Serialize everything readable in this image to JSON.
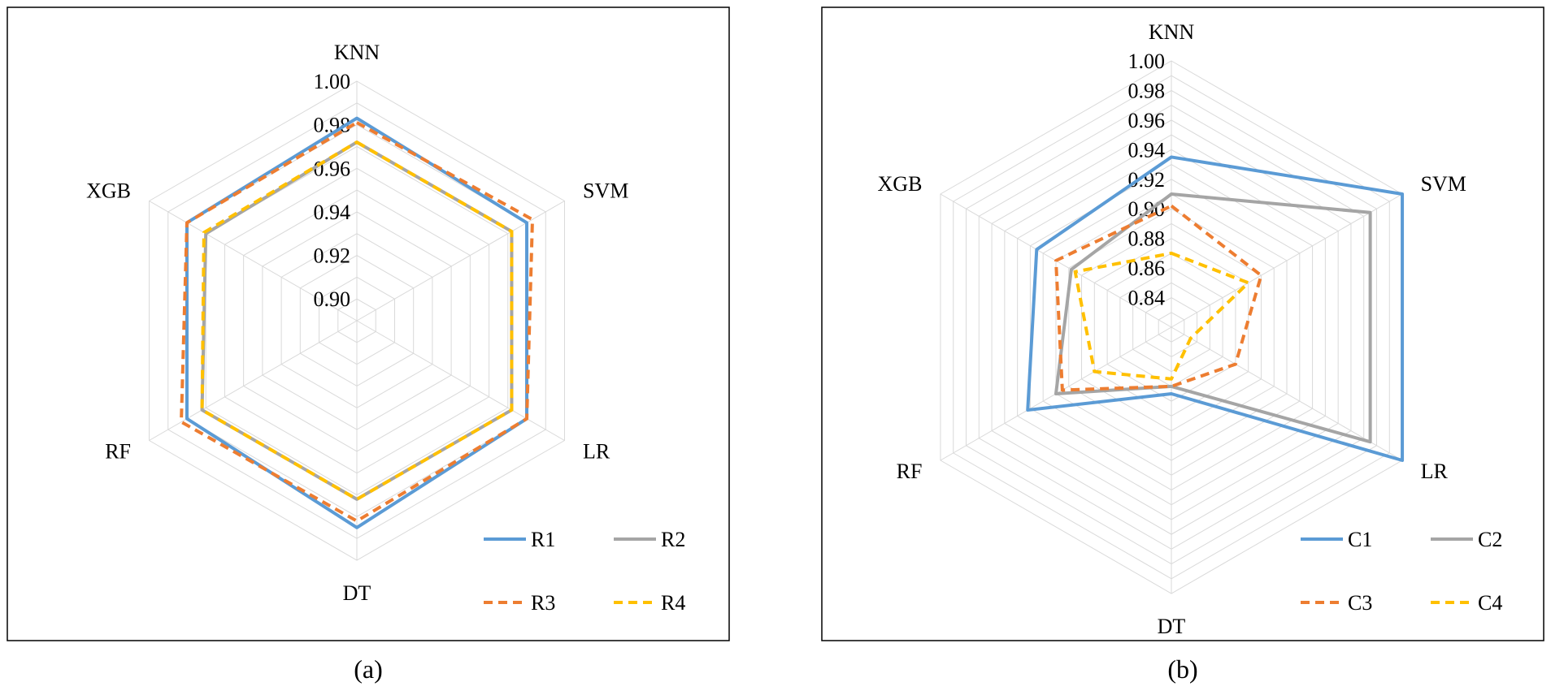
{
  "chart_data": [
    {
      "type": "radar",
      "caption": "(a)",
      "axes": [
        "KNN",
        "SVM",
        "LR",
        "DT",
        "RF",
        "XGB"
      ],
      "rlim": [
        0.89,
        1.0
      ],
      "tick_labels": [
        "1.00",
        "0.98",
        "0.96",
        "0.94",
        "0.92",
        "0.90"
      ],
      "grid": true,
      "legend_position": "bottom-right",
      "series": [
        {
          "name": "R1",
          "color": "#5B9BD5",
          "dash": "solid",
          "values": [
            0.983,
            0.98,
            0.98,
            0.985,
            0.98,
            0.98
          ]
        },
        {
          "name": "R2",
          "color": "#A5A5A5",
          "dash": "solid",
          "values": [
            0.972,
            0.972,
            0.972,
            0.972,
            0.972,
            0.97
          ]
        },
        {
          "name": "R3",
          "color": "#ED7D31",
          "dash": "dashed",
          "values": [
            0.981,
            0.983,
            0.98,
            0.982,
            0.983,
            0.98
          ]
        },
        {
          "name": "R4",
          "color": "#FFC000",
          "dash": "dashed",
          "values": [
            0.972,
            0.972,
            0.972,
            0.972,
            0.972,
            0.971
          ]
        }
      ]
    },
    {
      "type": "radar",
      "caption": "(b)",
      "axes": [
        "KNN",
        "SVM",
        "LR",
        "DT",
        "RF",
        "XGB"
      ],
      "rlim": [
        0.82,
        1.0
      ],
      "tick_labels": [
        "1.00",
        "0.98",
        "0.96",
        "0.94",
        "0.92",
        "0.90",
        "0.88",
        "0.86",
        "0.84"
      ],
      "grid": true,
      "legend_position": "bottom-right",
      "series": [
        {
          "name": "C1",
          "color": "#5B9BD5",
          "dash": "solid",
          "values": [
            0.935,
            1.0,
            1.0,
            0.865,
            0.932,
            0.925
          ]
        },
        {
          "name": "C2",
          "color": "#A5A5A5",
          "dash": "solid",
          "values": [
            0.91,
            0.975,
            0.975,
            0.86,
            0.91,
            0.898
          ]
        },
        {
          "name": "C3",
          "color": "#ED7D31",
          "dash": "dashed",
          "values": [
            0.902,
            0.89,
            0.87,
            0.86,
            0.905,
            0.91
          ]
        },
        {
          "name": "C4",
          "color": "#FFC000",
          "dash": "dashed",
          "values": [
            0.87,
            0.88,
            0.835,
            0.855,
            0.88,
            0.895
          ]
        }
      ]
    }
  ]
}
